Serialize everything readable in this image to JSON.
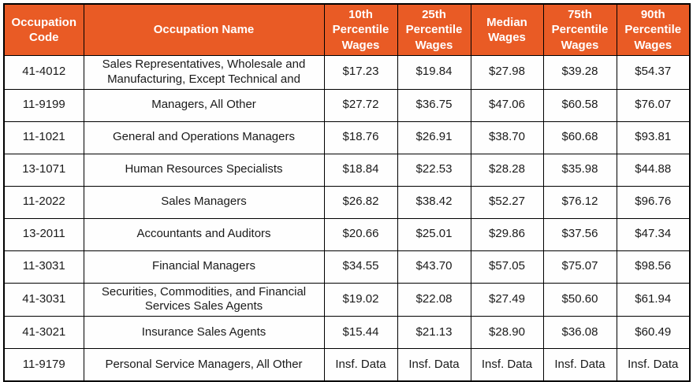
{
  "chart_data": {
    "type": "table",
    "columns": [
      "Occupation Code",
      "Occupation Name",
      "10th Percentile Wages",
      "25th Percentile Wages",
      "Median Wages",
      "75th Percentile Wages",
      "90th Percentile Wages"
    ],
    "rows": [
      {
        "code": "41-4012",
        "name": "Sales Representatives, Wholesale and Manufacturing, Except Technical and",
        "wages": [
          "$17.23",
          "$19.84",
          "$27.98",
          "$39.28",
          "$54.37"
        ]
      },
      {
        "code": "11-9199",
        "name": "Managers, All Other",
        "wages": [
          "$27.72",
          "$36.75",
          "$47.06",
          "$60.58",
          "$76.07"
        ]
      },
      {
        "code": "11-1021",
        "name": "General and Operations Managers",
        "wages": [
          "$18.76",
          "$26.91",
          "$38.70",
          "$60.68",
          "$93.81"
        ]
      },
      {
        "code": "13-1071",
        "name": "Human Resources Specialists",
        "wages": [
          "$18.84",
          "$22.53",
          "$28.28",
          "$35.98",
          "$44.88"
        ]
      },
      {
        "code": "11-2022",
        "name": "Sales Managers",
        "wages": [
          "$26.82",
          "$38.42",
          "$52.27",
          "$76.12",
          "$96.76"
        ]
      },
      {
        "code": "13-2011",
        "name": "Accountants and Auditors",
        "wages": [
          "$20.66",
          "$25.01",
          "$29.86",
          "$37.56",
          "$47.34"
        ]
      },
      {
        "code": "11-3031",
        "name": "Financial Managers",
        "wages": [
          "$34.55",
          "$43.70",
          "$57.05",
          "$75.07",
          "$98.56"
        ]
      },
      {
        "code": "41-3031",
        "name": "Securities, Commodities, and Financial Services Sales Agents",
        "wages": [
          "$19.02",
          "$22.08",
          "$27.49",
          "$50.60",
          "$61.94"
        ]
      },
      {
        "code": "41-3021",
        "name": "Insurance Sales Agents",
        "wages": [
          "$15.44",
          "$21.13",
          "$28.90",
          "$36.08",
          "$60.49"
        ]
      },
      {
        "code": "11-9179",
        "name": "Personal Service Managers, All Other",
        "wages": [
          "Insf. Data",
          "Insf. Data",
          "Insf. Data",
          "Insf. Data",
          "Insf. Data"
        ]
      }
    ],
    "insufficient_data_label": "Insf. Data",
    "colors": {
      "header_bg": "#E95B25",
      "header_text": "#FFFFFF",
      "cell_bg": "#FEFEFE",
      "body_text": "#1A1A1A",
      "border": "#000000"
    }
  }
}
